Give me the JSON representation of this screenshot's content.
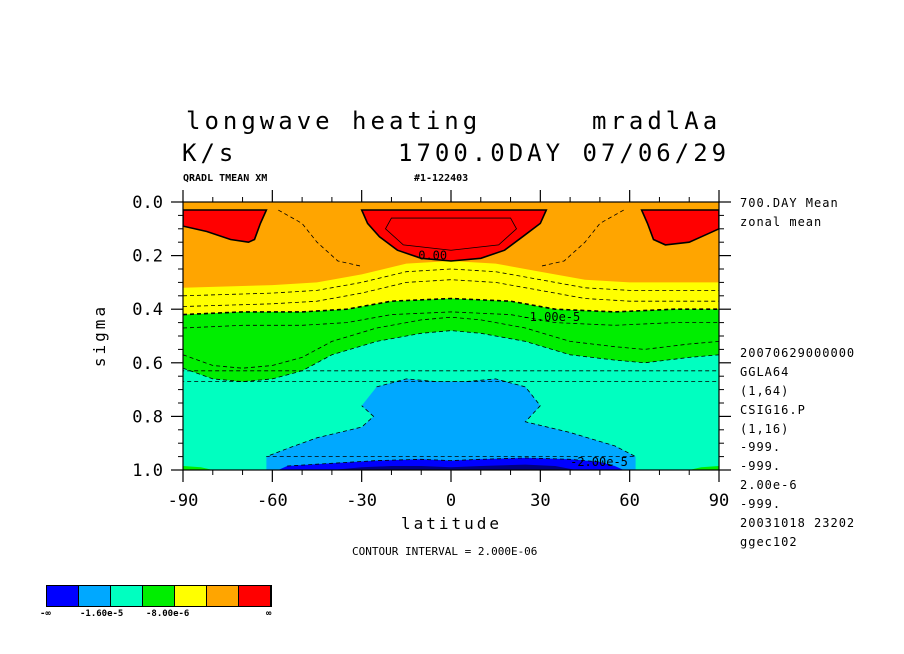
{
  "header": {
    "title_left": "longwave heating",
    "title_right": "mradlAa",
    "units": "K/s",
    "time_label": "1700.0DAY 07/06/29",
    "var_label": "QRADL TMEAN XM",
    "run_label": "#1-122403"
  },
  "side_notes": {
    "top": [
      "700.DAY Mean",
      "zonal mean"
    ],
    "bottom": [
      "20070629000000",
      "GGLA64",
      "(1,64)",
      "CSIG16.P",
      "(1,16)",
      "-999.",
      "-999.",
      "2.00e-6",
      "-999.",
      "20031018  23202",
      "ggec102"
    ]
  },
  "contour_interval": "CONTOUR INTERVAL = 2.000E-06",
  "colors": {
    "red": "#ff0000",
    "orange": "#ffa500",
    "yellow": "#ffff00",
    "green": "#00ee00",
    "aqua": "#00ffc0",
    "skyblue": "#00a8ff",
    "blue": "#0000ff",
    "navy": "#000080"
  },
  "colorbar": {
    "colors": [
      "#0000ff",
      "#00a8ff",
      "#00ffc0",
      "#00ee00",
      "#ffff00",
      "#ffa500",
      "#ff0000"
    ],
    "labels": [
      "-∞",
      "-1.60e-5",
      "-8.00e-6",
      "∞"
    ]
  },
  "chart_data": {
    "type": "heatmap",
    "title": "longwave heating",
    "xlabel": "latitude",
    "ylabel": "sigma",
    "xlim": [
      -90,
      90
    ],
    "ylim": [
      1.0,
      0.0
    ],
    "x_ticks": [
      -90,
      -60,
      -30,
      0,
      30,
      60,
      90
    ],
    "x_tick_labels": [
      "-90",
      "-60",
      "-30",
      "0",
      "30",
      "60",
      "90"
    ],
    "y_ticks": [
      0.0,
      0.2,
      0.4,
      0.6,
      0.8,
      1.0
    ],
    "y_tick_labels": [
      "0.0",
      "0.2",
      "0.4",
      "0.6",
      "0.8",
      "1.0"
    ],
    "contour_labels": [
      {
        "text": "0.00",
        "lat": -11,
        "sigma": 0.2
      },
      {
        "text": "-1.00e-5",
        "lat": 24,
        "sigma": 0.43
      },
      {
        "text": "-2.00e-5",
        "lat": 40,
        "sigma": 0.97
      }
    ],
    "bands": [
      {
        "name": "red-polar-sh",
        "color": "red",
        "boundary": [
          [
            -90,
            0.03
          ],
          [
            -62,
            0.03
          ],
          [
            -64,
            0.08
          ],
          [
            -66,
            0.14
          ],
          [
            -68,
            0.15
          ],
          [
            -74,
            0.14
          ],
          [
            -82,
            0.11
          ],
          [
            -90,
            0.09
          ]
        ]
      },
      {
        "name": "red-polar-nh",
        "color": "red",
        "boundary": [
          [
            90,
            0.03
          ],
          [
            64,
            0.03
          ],
          [
            66,
            0.08
          ],
          [
            68,
            0.14
          ],
          [
            72,
            0.16
          ],
          [
            80,
            0.15
          ],
          [
            86,
            0.12
          ],
          [
            90,
            0.1
          ]
        ]
      },
      {
        "name": "red-tropical",
        "color": "red",
        "boundary": [
          [
            -30,
            0.03
          ],
          [
            32,
            0.03
          ],
          [
            30,
            0.08
          ],
          [
            24,
            0.13
          ],
          [
            18,
            0.18
          ],
          [
            10,
            0.21
          ],
          [
            0,
            0.22
          ],
          [
            -10,
            0.21
          ],
          [
            -18,
            0.18
          ],
          [
            -24,
            0.13
          ],
          [
            -28,
            0.08
          ]
        ]
      },
      {
        "name": "yellow-band",
        "color": "yellow",
        "boundary": [
          [
            -90,
            0.32
          ],
          [
            -60,
            0.31
          ],
          [
            -45,
            0.3
          ],
          [
            -30,
            0.27
          ],
          [
            -15,
            0.23
          ],
          [
            0,
            0.22
          ],
          [
            15,
            0.23
          ],
          [
            30,
            0.26
          ],
          [
            45,
            0.29
          ],
          [
            60,
            0.3
          ],
          [
            90,
            0.3
          ],
          [
            90,
            0.6
          ],
          [
            -90,
            0.6
          ]
        ]
      },
      {
        "name": "green-band",
        "color": "green",
        "boundary": [
          [
            -90,
            0.42
          ],
          [
            -70,
            0.41
          ],
          [
            -50,
            0.41
          ],
          [
            -35,
            0.4
          ],
          [
            -20,
            0.37
          ],
          [
            0,
            0.36
          ],
          [
            20,
            0.37
          ],
          [
            35,
            0.4
          ],
          [
            55,
            0.41
          ],
          [
            75,
            0.4
          ],
          [
            90,
            0.4
          ],
          [
            90,
            1.0
          ],
          [
            -90,
            1.0
          ]
        ]
      },
      {
        "name": "aqua-band",
        "color": "aqua",
        "boundary": [
          [
            -90,
            0.62
          ],
          [
            -80,
            0.66
          ],
          [
            -70,
            0.67
          ],
          [
            -60,
            0.66
          ],
          [
            -50,
            0.63
          ],
          [
            -40,
            0.57
          ],
          [
            -25,
            0.52
          ],
          [
            -10,
            0.49
          ],
          [
            0,
            0.48
          ],
          [
            10,
            0.49
          ],
          [
            25,
            0.52
          ],
          [
            40,
            0.57
          ],
          [
            55,
            0.59
          ],
          [
            65,
            0.6
          ],
          [
            80,
            0.58
          ],
          [
            90,
            0.57
          ],
          [
            90,
            1.0
          ],
          [
            -90,
            1.0
          ]
        ]
      },
      {
        "name": "skyblue-core",
        "color": "skyblue",
        "boundary": [
          [
            -25,
            0.69
          ],
          [
            -15,
            0.66
          ],
          [
            -5,
            0.67
          ],
          [
            5,
            0.67
          ],
          [
            15,
            0.66
          ],
          [
            25,
            0.69
          ],
          [
            30,
            0.76
          ],
          [
            25,
            0.82
          ],
          [
            40,
            0.86
          ],
          [
            55,
            0.91
          ],
          [
            62,
            0.95
          ],
          [
            62,
            1.0
          ],
          [
            -62,
            1.0
          ],
          [
            -62,
            0.95
          ],
          [
            -55,
            0.92
          ],
          [
            -45,
            0.88
          ],
          [
            -30,
            0.84
          ],
          [
            -26,
            0.8
          ],
          [
            -30,
            0.76
          ]
        ]
      },
      {
        "name": "blue-lower",
        "color": "blue",
        "boundary": [
          [
            -58,
            1.0
          ],
          [
            -55,
            0.985
          ],
          [
            -40,
            0.975
          ],
          [
            -25,
            0.965
          ],
          [
            -10,
            0.96
          ],
          [
            0,
            0.965
          ],
          [
            10,
            0.96
          ],
          [
            25,
            0.955
          ],
          [
            40,
            0.96
          ],
          [
            50,
            0.97
          ],
          [
            55,
            0.985
          ],
          [
            58,
            1.0
          ]
        ]
      },
      {
        "name": "navy-lower",
        "color": "navy",
        "boundary": [
          [
            -40,
            1.0
          ],
          [
            -30,
            0.99
          ],
          [
            -20,
            0.985
          ],
          [
            -10,
            0.985
          ],
          [
            0,
            0.99
          ],
          [
            10,
            0.985
          ],
          [
            25,
            0.98
          ],
          [
            35,
            0.985
          ],
          [
            42,
            1.0
          ]
        ]
      },
      {
        "name": "green-corner-sh",
        "color": "green",
        "boundary": [
          [
            -90,
            0.985
          ],
          [
            -84,
            0.99
          ],
          [
            -80,
            1.0
          ],
          [
            -90,
            1.0
          ]
        ]
      },
      {
        "name": "green-corner-nh",
        "color": "green",
        "boundary": [
          [
            90,
            0.985
          ],
          [
            84,
            0.99
          ],
          [
            80,
            1.0
          ],
          [
            90,
            1.0
          ]
        ]
      }
    ]
  }
}
